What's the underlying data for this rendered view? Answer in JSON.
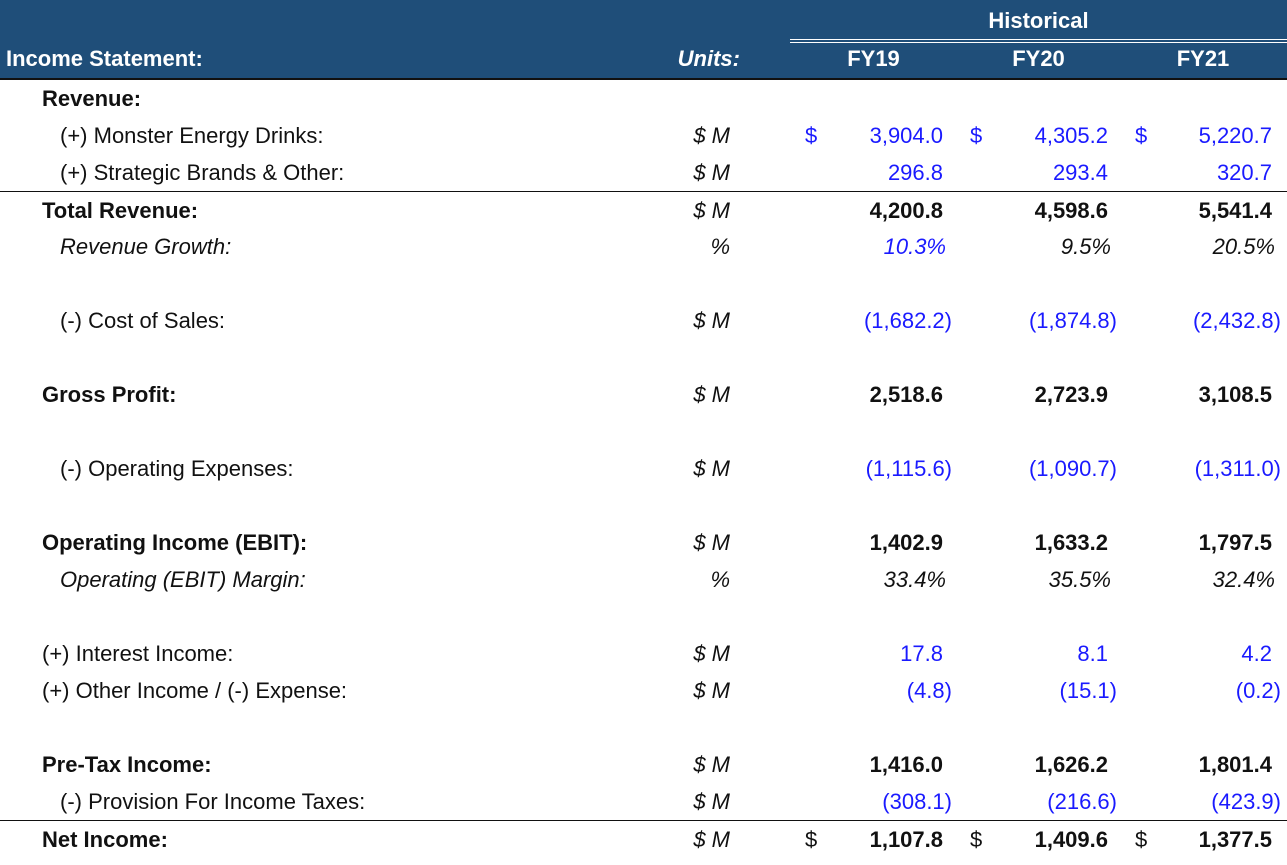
{
  "header": {
    "title": "Income Statement:",
    "units": "Units:",
    "group": "Historical",
    "years": [
      "FY19",
      "FY20",
      "FY21"
    ]
  },
  "colors": {
    "header_bg": "#1f4e79",
    "input_blue": "#1a1aff"
  },
  "rows": [
    {
      "label": "Revenue:",
      "units": "",
      "values": [],
      "bold": true
    },
    {
      "label": "(+) Monster Energy Drinks:",
      "units": "$ M",
      "values": [
        "3,904.0",
        "4,305.2",
        "5,220.7"
      ],
      "sub": true,
      "blue": [
        true,
        true,
        true
      ],
      "currency": "$"
    },
    {
      "label": "(+) Strategic Brands & Other:",
      "units": "$ M",
      "values": [
        "296.8",
        "293.4",
        "320.7"
      ],
      "sub": true,
      "blue": [
        true,
        true,
        true
      ]
    },
    {
      "label": "Total Revenue:",
      "units": "$ M",
      "values": [
        "4,200.8",
        "4,598.6",
        "5,541.4"
      ],
      "bold": true,
      "topline": true
    },
    {
      "label": "Revenue Growth:",
      "units": "%",
      "values": [
        "10.3%",
        "9.5%",
        "20.5%"
      ],
      "sub": true,
      "ital": true,
      "blue": [
        true,
        false,
        false
      ]
    },
    null,
    {
      "label": "(-) Cost of Sales:",
      "units": "$ M",
      "values": [
        "(1,682.2)",
        "(1,874.8)",
        "(2,432.8)"
      ],
      "sub": true,
      "blue": [
        true,
        true,
        true
      ]
    },
    null,
    {
      "label": "Gross Profit:",
      "units": "$ M",
      "values": [
        "2,518.6",
        "2,723.9",
        "3,108.5"
      ],
      "bold": true
    },
    null,
    {
      "label": "(-) Operating Expenses:",
      "units": "$ M",
      "values": [
        "(1,115.6)",
        "(1,090.7)",
        "(1,311.0)"
      ],
      "sub": true,
      "blue": [
        true,
        true,
        true
      ]
    },
    null,
    {
      "label": "Operating Income (EBIT):",
      "units": "$ M",
      "values": [
        "1,402.9",
        "1,633.2",
        "1,797.5"
      ],
      "bold": true
    },
    {
      "label": "Operating (EBIT) Margin:",
      "units": "%",
      "values": [
        "33.4%",
        "35.5%",
        "32.4%"
      ],
      "sub": true,
      "ital": true
    },
    null,
    {
      "label": "(+) Interest Income:",
      "units": "$ M",
      "values": [
        "17.8",
        "8.1",
        "4.2"
      ],
      "blue": [
        true,
        true,
        true
      ]
    },
    {
      "label": "(+) Other Income / (-) Expense:",
      "units": "$ M",
      "values": [
        "(4.8)",
        "(15.1)",
        "(0.2)"
      ],
      "blue": [
        true,
        true,
        true
      ]
    },
    null,
    {
      "label": "Pre-Tax Income:",
      "units": "$ M",
      "values": [
        "1,416.0",
        "1,626.2",
        "1,801.4"
      ],
      "bold": true
    },
    {
      "label": "(-) Provision For Income Taxes:",
      "units": "$ M",
      "values": [
        "(308.1)",
        "(216.6)",
        "(423.9)"
      ],
      "sub": true,
      "blue": [
        true,
        true,
        true
      ]
    },
    {
      "label": "Net Income:",
      "units": "$ M",
      "values": [
        "1,107.8",
        "1,409.6",
        "1,377.5"
      ],
      "bold": true,
      "topline": true,
      "currency": "$"
    }
  ]
}
